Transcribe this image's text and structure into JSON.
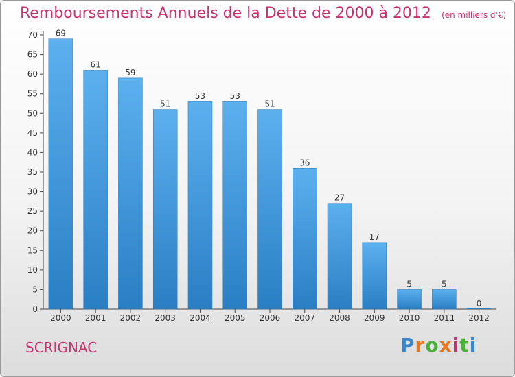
{
  "chart_data": {
    "type": "bar",
    "title": "Remboursements Annuels de la Dette de 2000 à 2012",
    "subtitle": "(en milliers d'€)",
    "categories": [
      "2000",
      "2001",
      "2002",
      "2003",
      "2004",
      "2005",
      "2006",
      "2007",
      "2008",
      "2009",
      "2010",
      "2011",
      "2012"
    ],
    "values": [
      69,
      61,
      59,
      51,
      53,
      53,
      51,
      36,
      27,
      17,
      5,
      5,
      0
    ],
    "ylim": [
      0,
      70
    ],
    "yticks": [
      0,
      5,
      10,
      15,
      20,
      25,
      30,
      35,
      40,
      45,
      50,
      55,
      60,
      65,
      70
    ],
    "grid": false,
    "bar_color": "#4a9fe0"
  },
  "footer": {
    "commune": "SCRIGNAC",
    "logo": {
      "letters": [
        "P",
        "r",
        "o",
        "x",
        "i",
        "t",
        "i"
      ],
      "colors": [
        "#3a86c8",
        "#e8761a",
        "#4caf3a",
        "#e8761a",
        "#c8326e",
        "#4caf3a",
        "#3a86c8"
      ]
    }
  }
}
